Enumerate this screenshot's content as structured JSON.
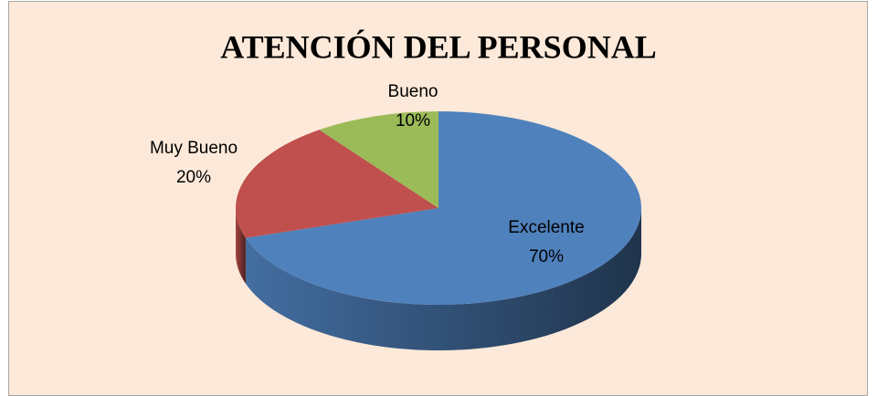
{
  "chart_data": {
    "type": "pie",
    "title": "ATENCIÓN DEL PERSONAL",
    "categories": [
      "Excelente",
      "Muy Bueno",
      "Bueno"
    ],
    "values": [
      70,
      20,
      10
    ],
    "value_labels": [
      "70%",
      "20%",
      "10%"
    ],
    "colors": [
      "#4f81bd",
      "#c0504d",
      "#9bbb59"
    ],
    "3d": true
  }
}
